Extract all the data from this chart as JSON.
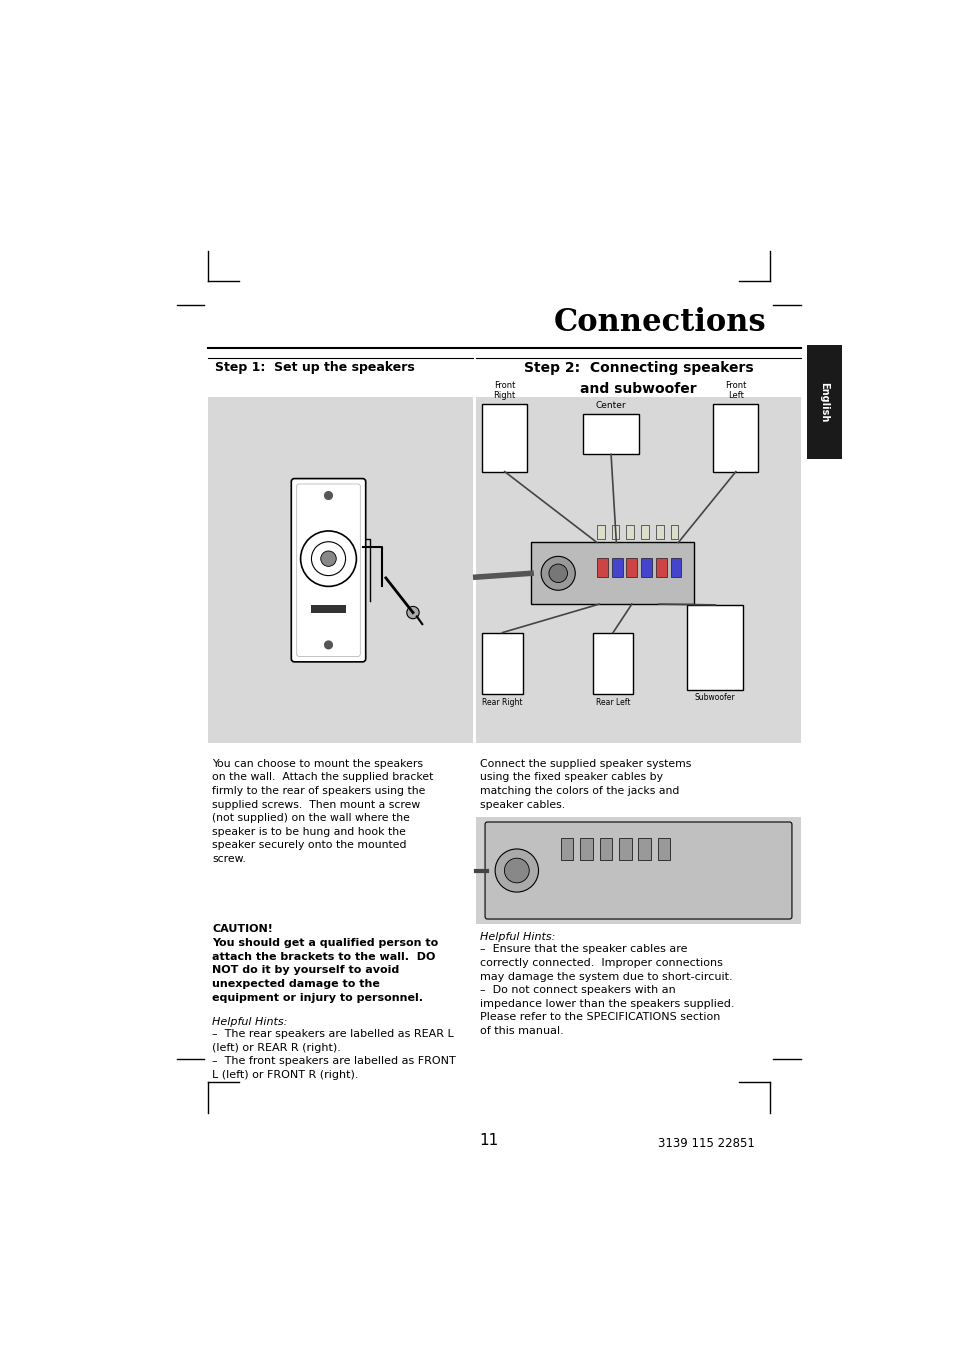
{
  "bg_color": "#ffffff",
  "page_width": 9.54,
  "page_height": 13.51,
  "title": "Connections",
  "step1_title": "Step 1:  Set up the speakers",
  "step2_title_line1": "Step 2:  Connecting speakers",
  "step2_title_line2": "and subwoofer",
  "english_tab": "English",
  "step1_body": "You can choose to mount the speakers\non the wall.  Attach the supplied bracket\nfirmly to the rear of speakers using the\nsupplied screws.  Then mount a screw\n(not supplied) on the wall where the\nspeaker is to be hung and hook the\nspeaker securely onto the mounted\nscrew.",
  "caution_title": "CAUTION!",
  "caution_body": "You should get a qualified person to\nattach the brackets to the wall.  DO\nNOT do it by yourself to avoid\nunexpected damage to the\nequipment or injury to personnel.",
  "step1_hints_title": "Helpful Hints:",
  "step1_hints": "–  The rear speakers are labelled as REAR L\n(left) or REAR R (right).\n–  The front speakers are labelled as FRONT\nL (left) or FRONT R (right).",
  "step2_body": "Connect the supplied speaker systems\nusing the fixed speaker cables by\nmatching the colors of the jacks and\nspeaker cables.",
  "step2_hints_title": "Helpful Hints:",
  "step2_hints": "–  Ensure that the speaker cables are\ncorrectly connected.  Improper connections\nmay damage the system due to short-circuit.\n–  Do not connect speakers with an\nimpedance lower than the speakers supplied.\nPlease refer to the SPECIFICATIONS section\nof this manual.",
  "page_number": "11",
  "footer_code": "3139 115 22851",
  "image_box1_color": "#d8d8d8",
  "image_box2_color": "#d8d8d8",
  "line_color": "#000000",
  "tab_color": "#1a1a1a",
  "tab_text_color": "#ffffff"
}
